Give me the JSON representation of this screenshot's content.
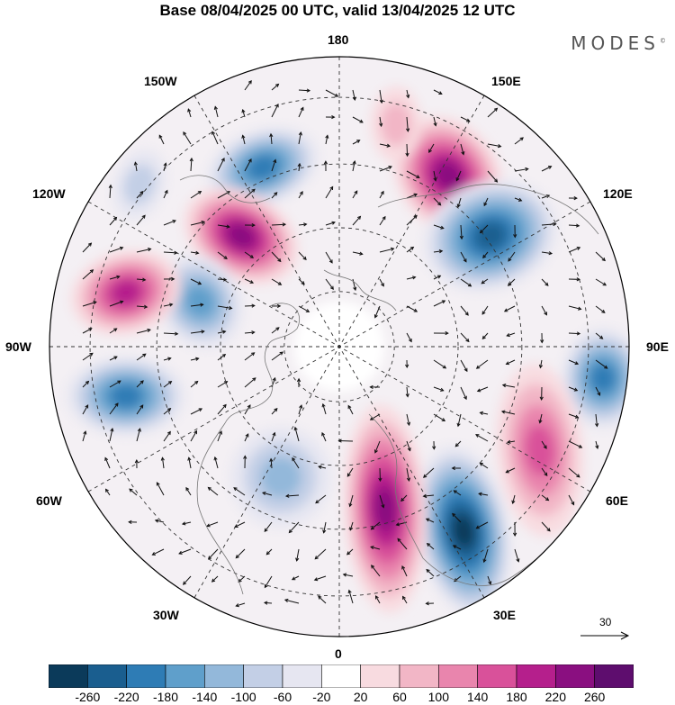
{
  "header": {
    "title": "Base 08/04/2025 00 UTC, valid 13/04/2025 12 UTC",
    "logo": "MODES",
    "logo_mark": "©"
  },
  "map": {
    "projection": "north-polar-stereographic",
    "longitude_labels": {
      "top": "180",
      "bottom": "0",
      "left": "90W",
      "right": "90E",
      "upper_left_1": "150W",
      "upper_left_2": "120W",
      "upper_right_1": "150E",
      "upper_right_2": "120E",
      "lower_left_1": "60W",
      "lower_left_2": "30W",
      "lower_right_1": "60E",
      "lower_right_2": "30E"
    },
    "reference_vector_label": "30",
    "anomaly_centers": [
      {
        "sign": "negative",
        "strength": 180,
        "lon_label": "150W"
      },
      {
        "sign": "positive",
        "strength": 220,
        "lon_label": "150W-120W"
      },
      {
        "sign": "negative",
        "strength": 140,
        "lon_label": "120W"
      },
      {
        "sign": "positive",
        "strength": 180,
        "lon_label": "120W-90W"
      },
      {
        "sign": "negative",
        "strength": 180,
        "lon_label": "90W"
      },
      {
        "sign": "positive",
        "strength": 220,
        "lon_label": "150E"
      },
      {
        "sign": "negative",
        "strength": 220,
        "lon_label": "120E"
      },
      {
        "sign": "negative",
        "strength": 180,
        "lon_label": "90E"
      },
      {
        "sign": "positive",
        "strength": 140,
        "lon_label": "60E"
      },
      {
        "sign": "negative",
        "strength": 260,
        "lon_label": "30E"
      },
      {
        "sign": "positive",
        "strength": 220,
        "lon_label": "0-30E"
      },
      {
        "sign": "negative",
        "strength": 100,
        "lon_label": "30W"
      }
    ]
  },
  "colorbar": {
    "labels": [
      "-260",
      "-220",
      "-180",
      "-140",
      "-100",
      "-60",
      "-20",
      "20",
      "60",
      "100",
      "140",
      "180",
      "220",
      "260"
    ],
    "colors": [
      "#0b3a5a",
      "#1a5e8f",
      "#2e7cb5",
      "#5f9fcb",
      "#93b8da",
      "#c3cfe6",
      "#e6e6f1",
      "#ffffff",
      "#f8dbe0",
      "#f2b6c6",
      "#e985ad",
      "#d9519a",
      "#b51f8c",
      "#8a0f80",
      "#5e0d6e"
    ]
  }
}
